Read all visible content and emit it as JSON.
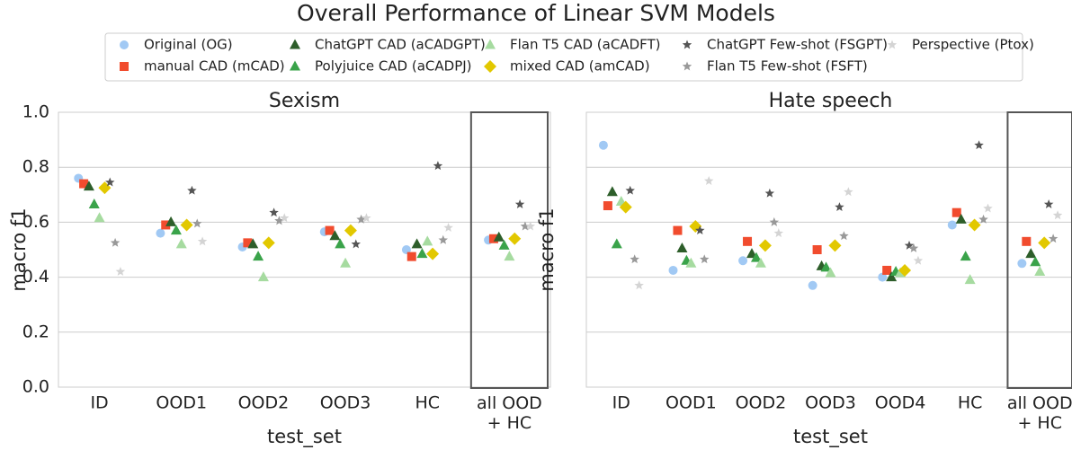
{
  "title": "Overall Performance of Linear SVM Models",
  "chart_data": [
    {
      "type": "point",
      "title": "Sexism",
      "xlabel": "test_set",
      "ylabel": "macro f1",
      "categories": [
        "ID",
        "OOD1",
        "OOD2",
        "OOD3",
        "HC",
        "all OOD\n+ HC"
      ],
      "ylim": [
        0,
        1
      ],
      "yticks": [
        {
          "value": 0,
          "label": "0.0"
        },
        {
          "value": 0.2,
          "label": "0.2"
        },
        {
          "value": 0.4,
          "label": "0.4"
        },
        {
          "value": 0.6,
          "label": "0.6"
        },
        {
          "value": 0.8,
          "label": "0.8"
        },
        {
          "value": 1,
          "label": "1.0"
        }
      ],
      "grid": true,
      "series": [
        {
          "name": "Original (OG)",
          "color": "#a1c9f4",
          "marker": "circle",
          "values": [
            0.76,
            0.56,
            0.51,
            0.565,
            0.5,
            0.535
          ]
        },
        {
          "name": "manual CAD (mCAD)",
          "color": "#f14c2e",
          "marker": "square",
          "values": [
            0.74,
            0.59,
            0.525,
            0.57,
            0.475,
            0.54
          ]
        },
        {
          "name": "ChatGPT CAD (aCADGPT)",
          "color": "#2d5e2a",
          "marker": "triangle",
          "values": [
            0.73,
            0.6,
            0.52,
            0.55,
            0.52,
            0.545
          ]
        },
        {
          "name": "Polyjuice CAD (aCADPJ)",
          "color": "#3aa34a",
          "marker": "triangle",
          "values": [
            0.665,
            0.57,
            0.475,
            0.52,
            0.485,
            0.515
          ]
        },
        {
          "name": "Flan T5 CAD (aCADFT)",
          "color": "#a6dba0",
          "marker": "triangle",
          "values": [
            0.615,
            0.52,
            0.4,
            0.45,
            0.53,
            0.475
          ]
        },
        {
          "name": "mixed CAD (amCAD)",
          "color": "#e2c800",
          "marker": "diamond",
          "values": [
            0.725,
            0.59,
            0.525,
            0.57,
            0.485,
            0.54
          ]
        },
        {
          "name": "ChatGPT Few-shot (FSGPT)",
          "color": "#555555",
          "marker": "star",
          "values": [
            0.745,
            0.715,
            0.635,
            0.52,
            0.805,
            0.665
          ]
        },
        {
          "name": "Flan T5 Few-shot (FSFT)",
          "color": "#999999",
          "marker": "star",
          "values": [
            0.525,
            0.595,
            0.605,
            0.61,
            0.535,
            0.585
          ]
        },
        {
          "name": "Perspective (Ptox)",
          "color": "#d4d4d4",
          "marker": "star",
          "values": [
            0.42,
            0.53,
            0.615,
            0.615,
            0.58,
            0.585
          ]
        }
      ]
    },
    {
      "type": "point",
      "title": "Hate speech",
      "xlabel": "test_set",
      "ylabel": "macro f1",
      "categories": [
        "ID",
        "OOD1",
        "OOD2",
        "OOD3",
        "OOD4",
        "HC",
        "all OOD\n+ HC"
      ],
      "ylim": [
        0,
        1
      ],
      "yticks": [
        0,
        0.2,
        0.4,
        0.6,
        0.8,
        1
      ],
      "grid": true,
      "series": [
        {
          "name": "Original (OG)",
          "color": "#a1c9f4",
          "marker": "circle",
          "values": [
            0.88,
            0.425,
            0.46,
            0.37,
            0.4,
            0.59,
            0.45
          ]
        },
        {
          "name": "manual CAD (mCAD)",
          "color": "#f14c2e",
          "marker": "square",
          "values": [
            0.66,
            0.57,
            0.53,
            0.5,
            0.425,
            0.635,
            0.53
          ]
        },
        {
          "name": "ChatGPT CAD (aCADGPT)",
          "color": "#2d5e2a",
          "marker": "triangle",
          "values": [
            0.71,
            0.505,
            0.485,
            0.44,
            0.4,
            0.61,
            0.485
          ]
        },
        {
          "name": "Polyjuice CAD (aCADPJ)",
          "color": "#3aa34a",
          "marker": "triangle",
          "values": [
            0.52,
            0.46,
            0.47,
            0.435,
            0.42,
            0.475,
            0.455
          ]
        },
        {
          "name": "Flan T5 CAD (aCADFT)",
          "color": "#a6dba0",
          "marker": "triangle",
          "values": [
            0.675,
            0.45,
            0.45,
            0.415,
            0.415,
            0.39,
            0.42
          ]
        },
        {
          "name": "mixed CAD (amCAD)",
          "color": "#e2c800",
          "marker": "diamond",
          "values": [
            0.655,
            0.585,
            0.515,
            0.515,
            0.425,
            0.59,
            0.525
          ]
        },
        {
          "name": "ChatGPT Few-shot (FSGPT)",
          "color": "#555555",
          "marker": "star",
          "values": [
            0.715,
            0.57,
            0.705,
            0.655,
            0.515,
            0.88,
            0.665
          ]
        },
        {
          "name": "Flan T5 Few-shot (FSFT)",
          "color": "#999999",
          "marker": "star",
          "values": [
            0.465,
            0.465,
            0.6,
            0.55,
            0.505,
            0.61,
            0.54
          ]
        },
        {
          "name": "Perspective (Ptox)",
          "color": "#d4d4d4",
          "marker": "star",
          "values": [
            0.37,
            0.75,
            0.56,
            0.71,
            0.46,
            0.65,
            0.625
          ]
        }
      ]
    }
  ]
}
